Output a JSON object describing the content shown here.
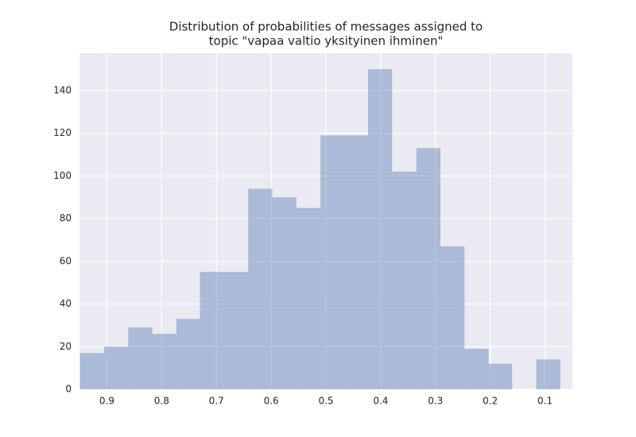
{
  "chart_data": {
    "type": "histogram",
    "title": [
      "Distribution of probabilities of messages assigned to",
      "topic \"vapaa valtio yksityinen ihminen\""
    ],
    "bins": [
      0.072,
      0.116,
      0.16,
      0.203,
      0.247,
      0.291,
      0.335,
      0.379,
      0.423,
      0.466,
      0.51,
      0.554,
      0.598,
      0.642,
      0.686,
      0.73,
      0.773,
      0.817,
      0.861,
      0.905,
      0.949
    ],
    "values": [
      14,
      0,
      12,
      19,
      67,
      113,
      102,
      150,
      119,
      119,
      85,
      90,
      94,
      55,
      55,
      33,
      26,
      29,
      20,
      17
    ],
    "color": "#4c72b0",
    "xlim": [
      0.95,
      0.05
    ],
    "xticks": [
      0.9,
      0.8,
      0.7,
      0.6,
      0.5,
      0.4,
      0.3,
      0.2,
      0.1
    ],
    "ylim": [
      0,
      157.5
    ],
    "yticks": [
      0,
      20,
      40,
      60,
      80,
      100,
      120,
      140
    ],
    "grid": true
  }
}
